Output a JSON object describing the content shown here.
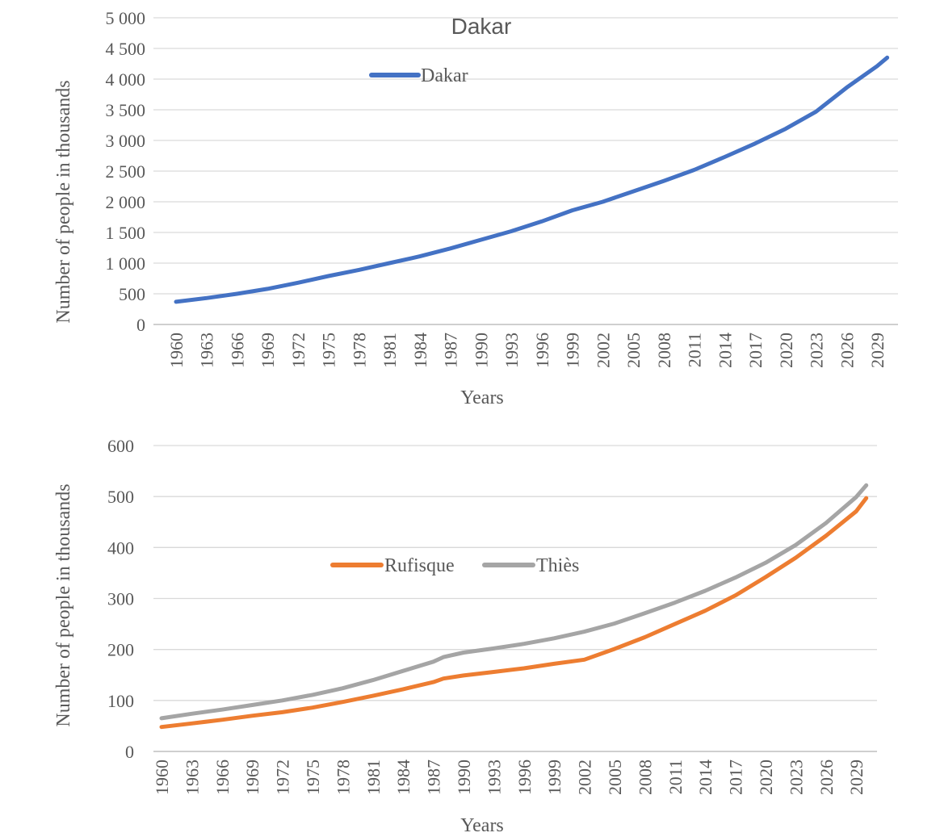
{
  "chart_data": [
    {
      "type": "line",
      "title": "Dakar",
      "xlabel": "Years",
      "ylabel": "Number of people in thousands",
      "ylim": [
        0,
        5000
      ],
      "yticks": [
        "0",
        "500",
        "1 000",
        "1 500",
        "2 000",
        "2 500",
        "3 000",
        "3 500",
        "4 000",
        "4 500",
        "5 000"
      ],
      "ytick_values": [
        0,
        500,
        1000,
        1500,
        2000,
        2500,
        3000,
        3500,
        4000,
        4500,
        5000
      ],
      "xticks": [
        "1960",
        "1963",
        "1966",
        "1969",
        "1972",
        "1975",
        "1978",
        "1981",
        "1984",
        "1987",
        "1990",
        "1993",
        "1996",
        "1999",
        "2002",
        "2005",
        "2008",
        "2011",
        "2014",
        "2017",
        "2020",
        "2023",
        "2026",
        "2029"
      ],
      "x_range": [
        1960,
        2030
      ],
      "grid": true,
      "legend_position": "top-center",
      "series": [
        {
          "name": "Dakar",
          "color": "#4472c4",
          "x": [
            1960,
            1963,
            1966,
            1969,
            1972,
            1975,
            1978,
            1981,
            1984,
            1987,
            1990,
            1993,
            1996,
            1999,
            2002,
            2005,
            2008,
            2011,
            2014,
            2017,
            2020,
            2023,
            2026,
            2029,
            2030
          ],
          "values": [
            370,
            430,
            500,
            580,
            680,
            790,
            890,
            1000,
            1110,
            1240,
            1380,
            1520,
            1680,
            1860,
            2000,
            2170,
            2340,
            2520,
            2730,
            2950,
            3190,
            3470,
            3860,
            4210,
            4350
          ]
        }
      ]
    },
    {
      "type": "line",
      "title": "",
      "xlabel": "Years",
      "ylabel": "Number of people in thousands",
      "ylim": [
        0,
        600
      ],
      "yticks": [
        "0",
        "100",
        "200",
        "300",
        "400",
        "500",
        "600"
      ],
      "ytick_values": [
        0,
        100,
        200,
        300,
        400,
        500,
        600
      ],
      "xticks": [
        "1960",
        "1963",
        "1966",
        "1969",
        "1972",
        "1975",
        "1978",
        "1981",
        "1984",
        "1987",
        "1990",
        "1993",
        "1996",
        "1999",
        "2002",
        "2005",
        "2008",
        "2011",
        "2014",
        "2017",
        "2020",
        "2023",
        "2026",
        "2029"
      ],
      "x_range": [
        1960,
        2030
      ],
      "grid": true,
      "legend_position": "center",
      "series": [
        {
          "name": "Rufisque",
          "color": "#ed7d31",
          "x": [
            1960,
            1963,
            1966,
            1969,
            1972,
            1975,
            1978,
            1981,
            1984,
            1987,
            1988,
            1990,
            1993,
            1996,
            1999,
            2002,
            2005,
            2008,
            2011,
            2014,
            2017,
            2020,
            2023,
            2026,
            2029,
            2030
          ],
          "values": [
            48,
            55,
            62,
            70,
            77,
            86,
            97,
            109,
            122,
            136,
            143,
            149,
            156,
            163,
            172,
            180,
            201,
            224,
            250,
            276,
            306,
            342,
            380,
            423,
            471,
            497
          ]
        },
        {
          "name": "Thiès",
          "color": "#a5a5a5",
          "x": [
            1960,
            1963,
            1966,
            1969,
            1972,
            1975,
            1978,
            1981,
            1984,
            1987,
            1988,
            1990,
            1993,
            1996,
            1999,
            2002,
            2005,
            2008,
            2011,
            2014,
            2017,
            2020,
            2023,
            2026,
            2029,
            2030
          ],
          "values": [
            65,
            74,
            82,
            91,
            100,
            111,
            124,
            140,
            158,
            176,
            185,
            194,
            202,
            211,
            222,
            235,
            251,
            271,
            292,
            315,
            341,
            370,
            405,
            448,
            499,
            522
          ]
        }
      ]
    }
  ]
}
